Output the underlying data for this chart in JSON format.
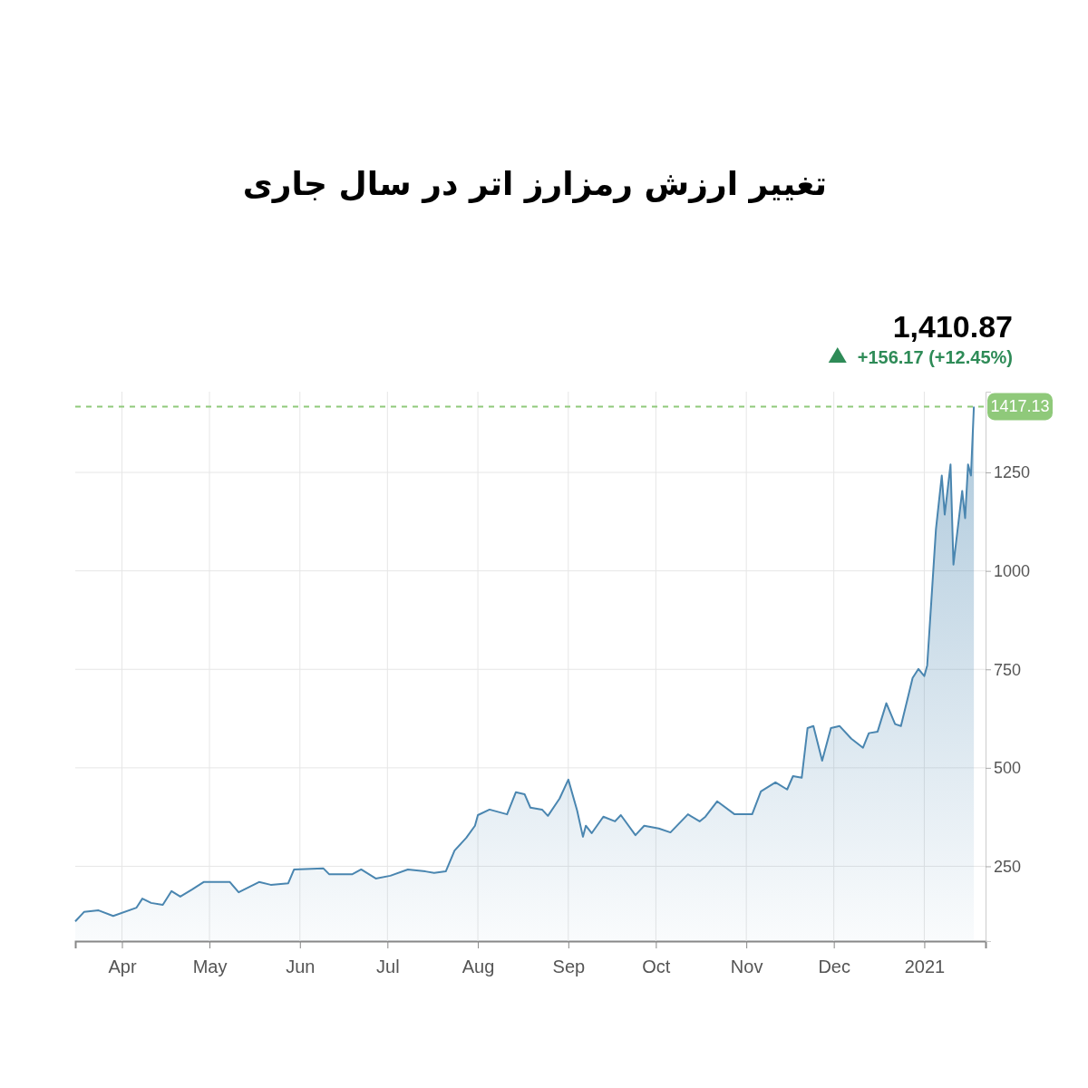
{
  "chart_data": {
    "type": "area",
    "title": "تغییر ارزش رمزارز اتر در سال جاری",
    "annotations": [
      "1,410.87",
      "+156.17 (+12.45%)"
    ],
    "x": [
      "2020-03-16",
      "2020-03-19",
      "2020-03-24",
      "2020-03-29",
      "2020-04-06",
      "2020-04-08",
      "2020-04-11",
      "2020-04-15",
      "2020-04-18",
      "2020-04-21",
      "2020-04-25",
      "2020-04-29",
      "2020-05-08",
      "2020-05-11",
      "2020-05-18",
      "2020-05-22",
      "2020-05-28",
      "2020-05-30",
      "2020-06-09",
      "2020-06-11",
      "2020-06-19",
      "2020-06-22",
      "2020-06-27",
      "2020-07-02",
      "2020-07-08",
      "2020-07-14",
      "2020-07-17",
      "2020-07-21",
      "2020-07-24",
      "2020-07-28",
      "2020-07-31",
      "2020-08-01",
      "2020-08-05",
      "2020-08-11",
      "2020-08-14",
      "2020-08-17",
      "2020-08-19",
      "2020-08-23",
      "2020-08-25",
      "2020-08-29",
      "2020-09-01",
      "2020-09-04",
      "2020-09-06",
      "2020-09-07",
      "2020-09-09",
      "2020-09-13",
      "2020-09-17",
      "2020-09-19",
      "2020-09-24",
      "2020-09-27",
      "2020-10-02",
      "2020-10-06",
      "2020-10-12",
      "2020-10-16",
      "2020-10-18",
      "2020-10-22",
      "2020-10-28",
      "2020-11-03",
      "2020-11-06",
      "2020-11-11",
      "2020-11-15",
      "2020-11-17",
      "2020-11-20",
      "2020-11-22",
      "2020-11-24",
      "2020-11-27",
      "2020-11-30",
      "2020-12-03",
      "2020-12-07",
      "2020-12-11",
      "2020-12-13",
      "2020-12-16",
      "2020-12-19",
      "2020-12-22",
      "2020-12-24",
      "2020-12-28",
      "2020-12-30",
      "2021-01-01",
      "2021-01-02",
      "2021-01-05",
      "2021-01-07",
      "2021-01-08",
      "2021-01-10",
      "2021-01-11",
      "2021-01-14",
      "2021-01-15",
      "2021-01-16",
      "2021-01-17",
      "2021-01-18"
    ],
    "series": [
      {
        "color": "#4a86b0",
        "values": [
          110,
          134,
          138,
          124,
          145,
          168,
          157,
          152,
          187,
          173,
          191,
          210,
          210,
          184,
          210,
          203,
          207,
          242,
          245,
          230,
          230,
          242,
          219,
          226,
          242,
          237,
          233,
          237,
          290,
          322,
          353,
          380,
          394,
          382,
          438,
          433,
          399,
          394,
          378,
          422,
          470,
          392,
          325,
          353,
          334,
          376,
          364,
          380,
          329,
          353,
          346,
          336,
          382,
          364,
          376,
          415,
          382,
          382,
          440,
          463,
          445,
          479,
          475,
          601,
          606,
          518,
          601,
          606,
          574,
          551,
          588,
          592,
          664,
          611,
          606,
          728,
          751,
          733,
          760,
          1106,
          1242,
          1143,
          1270,
          1016,
          1203,
          1134,
          1270,
          1242,
          1417.13
        ]
      }
    ],
    "xlim": [
      "2020-03-16",
      "2021-01-22"
    ],
    "xticks": [
      {
        "value": "2020-04-01",
        "label": "Apr"
      },
      {
        "value": "2020-05-01",
        "label": "May"
      },
      {
        "value": "2020-06-01",
        "label": "Jun"
      },
      {
        "value": "2020-07-01",
        "label": "Jul"
      },
      {
        "value": "2020-08-01",
        "label": "Aug"
      },
      {
        "value": "2020-09-01",
        "label": "Sep"
      },
      {
        "value": "2020-10-01",
        "label": "Oct"
      },
      {
        "value": "2020-11-01",
        "label": "Nov"
      },
      {
        "value": "2020-12-01",
        "label": "Dec"
      },
      {
        "value": "2021-01-01",
        "label": "2021"
      }
    ],
    "ylim": [
      60,
      1455
    ],
    "yticks": [
      250,
      500,
      750,
      1000,
      1250
    ],
    "ref_lines": [
      {
        "axis": "y",
        "value": 1417.13,
        "label": "1417.13",
        "color": "#8fc97a",
        "line_style": "dashed"
      }
    ],
    "grid": true
  }
}
